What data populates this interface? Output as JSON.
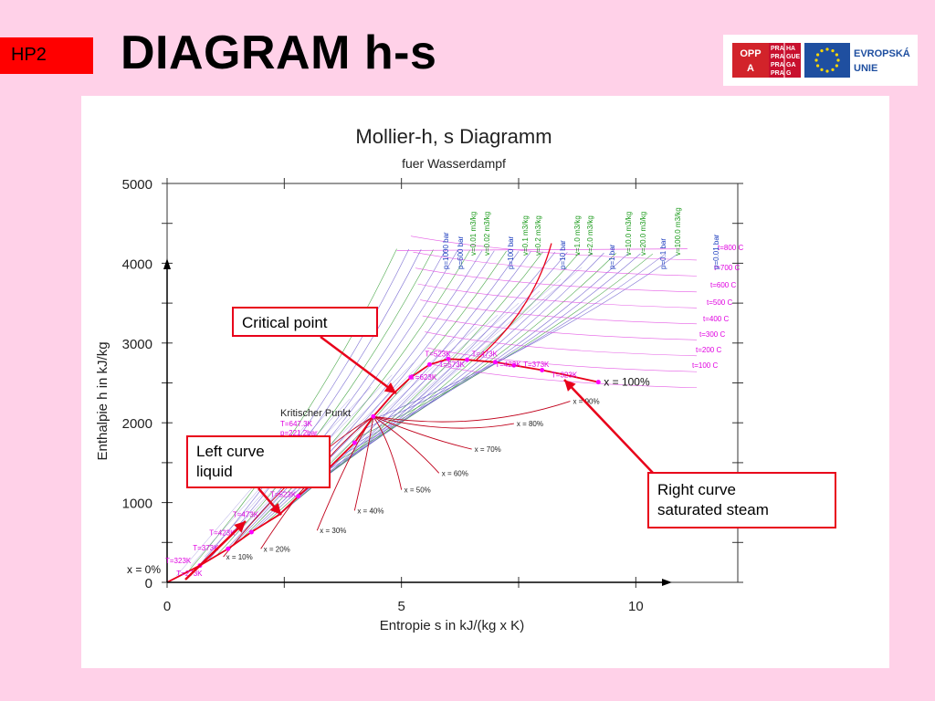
{
  "slide": {
    "tag": "HP2",
    "title": "DIAGRAM h-s"
  },
  "logos": {
    "oppa": [
      "OPP",
      "A"
    ],
    "praha": [
      "PRA",
      "HA",
      "PRA",
      "GUE",
      "PRA",
      "GA",
      "PRA",
      "G"
    ],
    "eu": [
      "EVROPSKÁ",
      "UNIE"
    ],
    "colors": {
      "oppa_red": "#d2232a",
      "eu_blue": "#1f4fa0",
      "praha_red": "#c8102e"
    }
  },
  "chart_data": {
    "type": "line",
    "title": "Mollier-h, s Diagramm",
    "subtitle": "fuer Wasserdampf",
    "xlabel": "Entropie s in kJ/(kg x K)",
    "ylabel": "Enthalpie h in kJ/kg",
    "xlim": [
      0,
      12
    ],
    "ylim": [
      0,
      5000
    ],
    "xticks": [
      "0",
      "5",
      "10"
    ],
    "yticks": [
      "0",
      "1000",
      "2000",
      "3000",
      "4000",
      "5000"
    ],
    "saturated_liquid_line": {
      "x": [
        0,
        0.7,
        1.3,
        1.8,
        2.4,
        2.8,
        3.4,
        4.0,
        4.4
      ],
      "y": [
        0,
        210,
        420,
        630,
        850,
        1080,
        1400,
        1750,
        2080
      ]
    },
    "saturated_vapor_line": {
      "x": [
        4.4,
        4.8,
        5.2,
        5.6,
        6.0,
        6.4,
        7.0,
        7.4,
        8.0,
        8.5,
        9.2
      ],
      "y": [
        2080,
        2350,
        2570,
        2730,
        2800,
        2790,
        2760,
        2720,
        2660,
        2600,
        2510
      ]
    },
    "critical_point": {
      "x": 4.4,
      "y": 2080
    },
    "pressure_labels": [
      "p=1000 bar",
      "p=600 bar",
      "p=100 bar",
      "p=10 bar",
      "p=1 bar",
      "p=0.1 bar",
      "p=0.01 bar"
    ],
    "volume_labels": [
      "v=0.01 m3/kg",
      "v=0.02 m3/kg",
      "v=0.1 m3/kg",
      "v=0.2 m3/kg",
      "v=1.0 m3/kg",
      "v=2.0 m3/kg",
      "v=10.0 m3/kg",
      "v=20.0 m3/kg",
      "v=100.0 m3/kg"
    ],
    "temperature_labels_right": [
      "t=800 C",
      "t=700 C",
      "t=600 C",
      "t=500 C",
      "t=400 C",
      "t=300 C",
      "t=200 C",
      "t=100 C"
    ],
    "quality_labels": [
      "x = 100%",
      "x = 90%",
      "x = 80%",
      "x = 70%",
      "x = 60%",
      "x = 50%",
      "x = 40%",
      "x = 30%",
      "x = 20%",
      "x = 10%",
      "x = 0%"
    ],
    "liquid_temperature_labels": [
      "T=523K",
      "T=473K",
      "T=423K",
      "T=373K",
      "T=323K",
      "T=273K"
    ],
    "vapor_temperature_labels": [
      "T=523K",
      "T=473K",
      "T=573K",
      "T=623K",
      "T=423K",
      "T=373K",
      "T=323K"
    ],
    "critical_label": [
      "Kritischer Punkt",
      "T=647.3K",
      "p=221.2bar"
    ],
    "colors": {
      "sat": "#e8001a",
      "quality": "#c0001a",
      "pressure": "#6a5acd",
      "isochore": "#2e9a2e",
      "isotherm": "#e040e0",
      "marker": "#ff00ff",
      "callout": "#e8001a"
    }
  },
  "callouts": {
    "critical": "Critical point",
    "left": [
      "Left curve",
      "liquid"
    ],
    "right": [
      "Right curve",
      "saturated steam"
    ]
  }
}
